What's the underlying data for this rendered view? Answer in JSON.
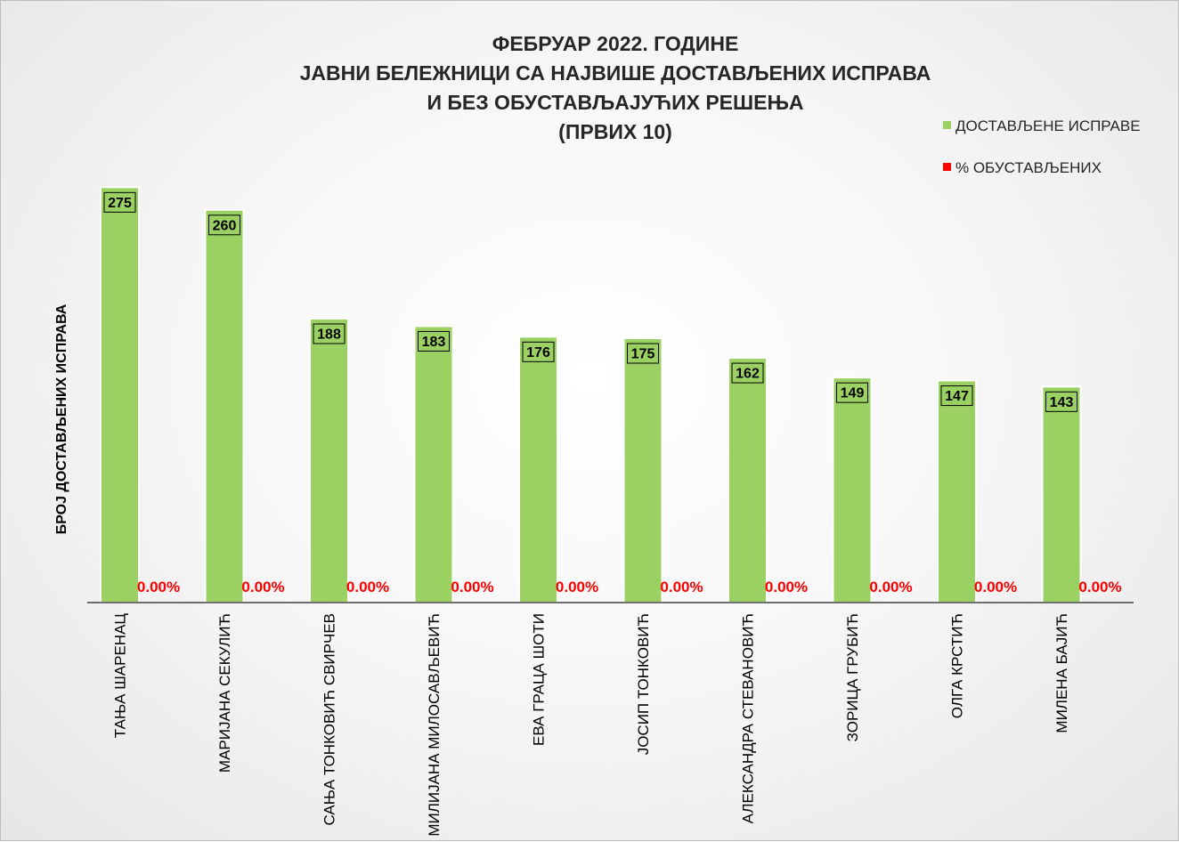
{
  "chart_data": {
    "type": "bar",
    "title_lines": [
      "ФЕБРУАР 2022. ГОДИНЕ",
      "ЈАВНИ БЕЛЕЖНИЦИ СА НАЈВИШЕ ДОСТАВЉЕНИХ ИСПРАВА",
      "И БЕЗ ОБУСТАВЉАЈУЋИХ РЕШЕЊА",
      "(ПРВИХ 10)"
    ],
    "ylabel": "БРОЈ ДОСТАВЉЕНИХ ИСПРАВА",
    "xlabel": "",
    "ylim": [
      0,
      300
    ],
    "grid": false,
    "legend_position": "top-right",
    "categories": [
      "ТАЊА ШАРЕНАЦ",
      "МАРИЈАНА СЕКУЛИЋ",
      "САЊА ТОНКОВИЋ СВИРЧЕВ",
      "МИЛИЈАНА МИЛОСАВЉЕВИЋ",
      "ЕВА ГРАЦА ШОТИ",
      "ЈОСИП ТОНКОВИЋ",
      "АЛЕКСАНДРА СТЕВАНОВИЋ",
      "ЗОРИЦА ГРУБИЋ",
      "ОЛГА КРСТИЋ",
      "МИЛЕНА БАЈИЋ"
    ],
    "series": [
      {
        "name": "ДОСТАВЉЕНЕ ИСПРАВЕ",
        "color": "#9bd163",
        "values": [
          275,
          260,
          188,
          183,
          176,
          175,
          162,
          149,
          147,
          143
        ],
        "labels": [
          "275",
          "260",
          "188",
          "183",
          "176",
          "175",
          "162",
          "149",
          "147",
          "143"
        ]
      },
      {
        "name": "% ОБУСТАВЉЕНИХ",
        "color": "#ff0000",
        "values": [
          0,
          0,
          0,
          0,
          0,
          0,
          0,
          0,
          0,
          0
        ],
        "labels": [
          "0.00%",
          "0.00%",
          "0.00%",
          "0.00%",
          "0.00%",
          "0.00%",
          "0.00%",
          "0.00%",
          "0.00%",
          "0.00%"
        ]
      }
    ]
  }
}
